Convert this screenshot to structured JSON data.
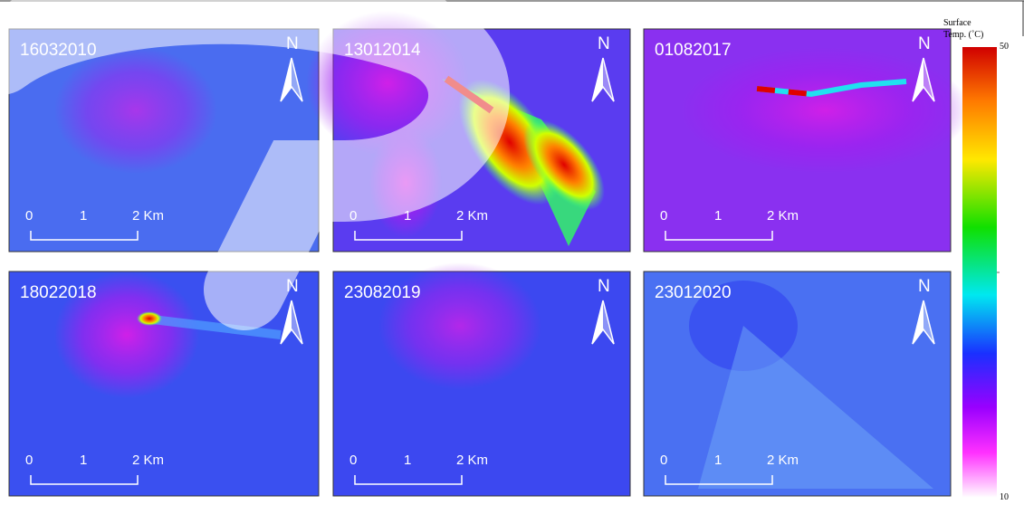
{
  "panels": [
    {
      "date": "16032010"
    },
    {
      "date": "13012014"
    },
    {
      "date": "01082017"
    },
    {
      "date": "18022018"
    },
    {
      "date": "23082019"
    },
    {
      "date": "23012020"
    }
  ],
  "north_label": "N",
  "scale_labels": [
    "0",
    "1",
    "2 Km"
  ],
  "colorbar": {
    "title_lines": [
      "Surface",
      "Temp. (˚C)"
    ],
    "labels": [
      "50",
      "10"
    ]
  }
}
